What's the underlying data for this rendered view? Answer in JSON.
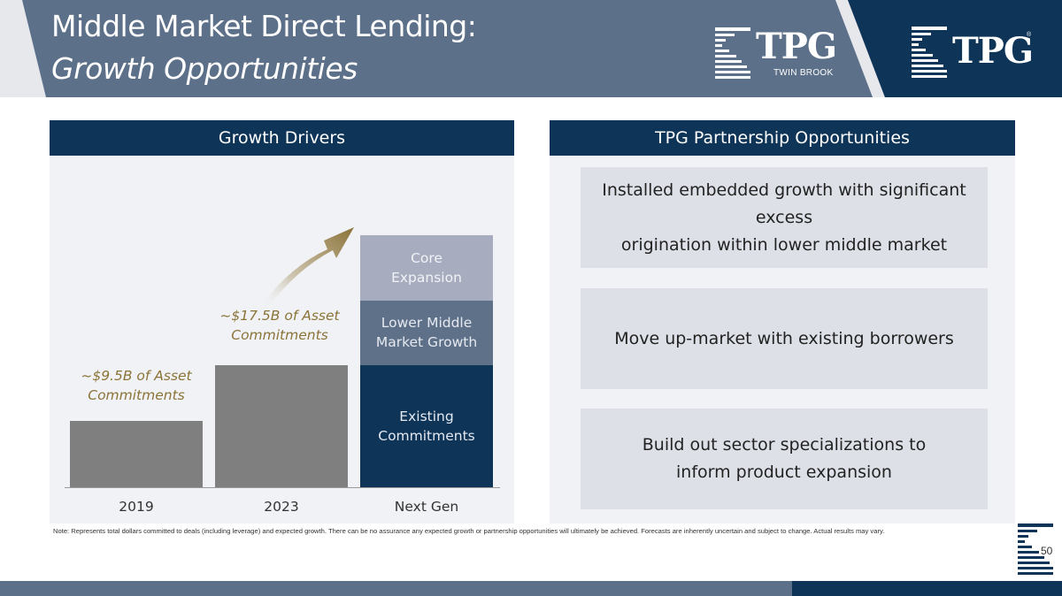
{
  "header": {
    "title_line1": "Middle Market Direct Lending:",
    "title_line2": "Growth Opportunities",
    "logo_twin_brook": {
      "word": "TPG",
      "sub": "TWIN BROOK"
    },
    "logo_tpg": {
      "word": "TPG",
      "reg": "®"
    }
  },
  "colors": {
    "header_gray": "#5d7089",
    "navy": "#0e3458",
    "panel_bg": "#f0f2f5",
    "card_bg": "#dde1e7",
    "bar_gray": "#7f7f7f",
    "mid_blue": "#5f7189",
    "light_slate": "#a7acbf",
    "gold": "#8b7338"
  },
  "left_panel": {
    "heading": "Growth Drivers"
  },
  "right_panel": {
    "heading": "TPG Partnership Opportunities",
    "opportunities": [
      {
        "line1": "Installed embedded growth with significant excess",
        "line2": "origination within lower middle market"
      },
      {
        "line1": "Move up-market with existing borrowers",
        "line2": ""
      },
      {
        "line1": "Build out sector specializations to",
        "line2": "inform product expansion"
      }
    ]
  },
  "chart_data": {
    "type": "bar",
    "categories": [
      "2019",
      "2023",
      "Next Gen"
    ],
    "values": [
      9.5,
      17.5,
      null
    ],
    "stacked_next_gen": [
      {
        "label_line1": "Existing",
        "label_line2": "Commitments",
        "value": 17.5
      },
      {
        "label_line1": "Lower Middle",
        "label_line2": "Market Growth",
        "value": 9.3
      },
      {
        "label_line1": "Core",
        "label_line2": "Expansion",
        "value": 9.3
      }
    ],
    "annotations": [
      {
        "line1": "~$9.5B of Asset",
        "line2": "Commitments"
      },
      {
        "line1": "~$17.5B of Asset",
        "line2": "Commitments"
      }
    ],
    "ylim": [
      0,
      40
    ]
  },
  "note": "Note: Represents total dollars committed to deals (including leverage)  and expected growth. There can be no assurance any expected growth or partnership opportunities will ultimately be achieved. Forecasts are inherently uncertain and subject to change. Actual results may vary.",
  "page_number": "50"
}
